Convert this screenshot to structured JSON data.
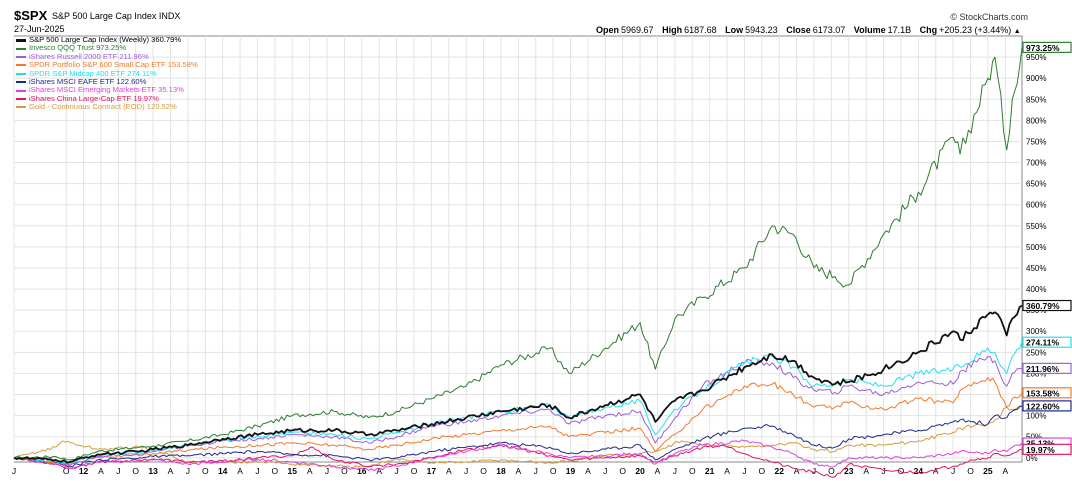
{
  "header": {
    "symbol": "$SPX",
    "name": "S&P 500 Large Cap Index INDX",
    "date": "27-Jun-2025",
    "brand": "© StockCharts.com",
    "ohlc": {
      "open_label": "Open",
      "open": "5969.67",
      "high_label": "High",
      "high": "6187.68",
      "low_label": "Low",
      "low": "5943.23",
      "close_label": "Close",
      "close": "6173.07",
      "volume_label": "Volume",
      "volume": "17.1B",
      "chg_label": "Chg",
      "chg": "+205.23 (+3.44%)",
      "chg_icon": "triangle-up-icon"
    }
  },
  "chart_data": {
    "type": "line",
    "title": "S&P 500 Large Cap Index (Weekly) 360.79%",
    "x_range": [
      "2011-01",
      "2025-06"
    ],
    "y_unit": "% change",
    "ylim": [
      -10,
      1000
    ],
    "y_ticks": [
      0,
      50,
      100,
      150,
      200,
      250,
      300,
      350,
      400,
      450,
      500,
      550,
      600,
      650,
      700,
      750,
      800,
      850,
      900,
      950
    ],
    "y_tick_labels": [
      "0%",
      "50%",
      "100%",
      "150%",
      "200%",
      "250%",
      "300%",
      "350%",
      "400%",
      "450%",
      "500%",
      "550%",
      "600%",
      "650%",
      "700%",
      "750%",
      "800%",
      "850%",
      "900%",
      "950%"
    ],
    "x_tick_labels": [
      "J",
      "O",
      "12",
      "A",
      "J",
      "O",
      "13",
      "A",
      "J",
      "O",
      "14",
      "A",
      "J",
      "O",
      "15",
      "A",
      "J",
      "O",
      "16",
      "A",
      "J",
      "O",
      "17",
      "A",
      "J",
      "O",
      "18",
      "A",
      "J",
      "O",
      "19",
      "A",
      "J",
      "O",
      "20",
      "A",
      "J",
      "O",
      "21",
      "A",
      "J",
      "O",
      "22",
      "A",
      "J",
      "O",
      "23",
      "A",
      "J",
      "O",
      "24",
      "A",
      "J",
      "O",
      "25",
      "A"
    ],
    "x_tick_years": [
      2011.0,
      2011.75,
      2012.0,
      2012.25,
      2012.5,
      2012.75,
      2013.0,
      2013.25,
      2013.5,
      2013.75,
      2014.0,
      2014.25,
      2014.5,
      2014.75,
      2015.0,
      2015.25,
      2015.5,
      2015.75,
      2016.0,
      2016.25,
      2016.5,
      2016.75,
      2017.0,
      2017.25,
      2017.5,
      2017.75,
      2018.0,
      2018.25,
      2018.5,
      2018.75,
      2019.0,
      2019.25,
      2019.5,
      2019.75,
      2020.0,
      2020.25,
      2020.5,
      2020.75,
      2021.0,
      2021.25,
      2021.5,
      2021.75,
      2022.0,
      2022.25,
      2022.5,
      2022.75,
      2023.0,
      2023.25,
      2023.5,
      2023.75,
      2024.0,
      2024.25,
      2024.5,
      2024.75,
      2025.0,
      2025.25
    ],
    "x_tick_bold": [
      false,
      false,
      true,
      false,
      false,
      false,
      true,
      false,
      false,
      false,
      true,
      false,
      false,
      false,
      true,
      false,
      false,
      false,
      true,
      false,
      false,
      false,
      true,
      false,
      false,
      false,
      true,
      false,
      false,
      false,
      true,
      false,
      false,
      false,
      true,
      false,
      false,
      false,
      true,
      false,
      false,
      false,
      true,
      false,
      false,
      false,
      true,
      false,
      false,
      false,
      true,
      false,
      false,
      false,
      true,
      false
    ],
    "grid": true,
    "legend_position": "top-left",
    "series": [
      {
        "name": "Invesco QQQ Trust 973.25%",
        "color": "#2e7d32",
        "end_label": "973.25%",
        "x": [
          2011.0,
          2011.6,
          2011.8,
          2012.2,
          2012.8,
          2013.0,
          2013.5,
          2014.0,
          2014.5,
          2015.0,
          2015.6,
          2016.1,
          2016.5,
          2017.0,
          2017.5,
          2018.0,
          2018.7,
          2018.98,
          2019.5,
          2020.0,
          2020.22,
          2020.5,
          2020.9,
          2021.5,
          2021.9,
          2022.2,
          2022.5,
          2022.8,
          2023.0,
          2023.5,
          2024.0,
          2024.5,
          2024.6,
          2025.0,
          2025.1,
          2025.27,
          2025.35,
          2025.49
        ],
        "y": [
          0,
          3,
          -5,
          15,
          25,
          28,
          40,
          55,
          75,
          100,
          110,
          95,
          110,
          140,
          170,
          220,
          260,
          200,
          260,
          320,
          210,
          330,
          380,
          450,
          550,
          530,
          450,
          430,
          410,
          530,
          630,
          760,
          720,
          900,
          950,
          730,
          850,
          973
        ]
      },
      {
        "name": "S&P 500 Large Cap Index (Weekly) 360.79%",
        "color": "#111111",
        "bold": true,
        "end_label": "360.79%",
        "x": [
          2011.0,
          2011.6,
          2011.8,
          2012.2,
          2012.8,
          2013.0,
          2013.5,
          2014.0,
          2014.5,
          2015.0,
          2015.6,
          2016.1,
          2016.5,
          2017.0,
          2017.5,
          2018.0,
          2018.7,
          2018.98,
          2019.5,
          2020.0,
          2020.22,
          2020.5,
          2020.9,
          2021.5,
          2021.9,
          2022.2,
          2022.5,
          2022.8,
          2023.0,
          2023.5,
          2024.0,
          2024.5,
          2024.6,
          2025.0,
          2025.1,
          2025.27,
          2025.35,
          2025.49
        ],
        "y": [
          0,
          -5,
          -10,
          8,
          15,
          20,
          30,
          45,
          55,
          65,
          65,
          55,
          65,
          80,
          95,
          110,
          125,
          95,
          125,
          150,
          85,
          135,
          160,
          215,
          245,
          230,
          190,
          175,
          180,
          210,
          250,
          300,
          280,
          340,
          345,
          290,
          330,
          361
        ]
      },
      {
        "name": "SPDR S&P Midcap 400 ETF 274.11%",
        "color": "#22e0f0",
        "end_label": "274.11%",
        "x": [
          2011.0,
          2011.6,
          2011.8,
          2012.2,
          2012.8,
          2013.0,
          2013.5,
          2014.0,
          2014.5,
          2015.0,
          2015.6,
          2016.1,
          2016.5,
          2017.0,
          2017.5,
          2018.0,
          2018.7,
          2018.98,
          2019.5,
          2020.0,
          2020.22,
          2020.5,
          2020.9,
          2021.5,
          2021.9,
          2022.2,
          2022.5,
          2022.8,
          2023.0,
          2023.5,
          2024.0,
          2024.5,
          2024.6,
          2025.0,
          2025.1,
          2025.27,
          2025.35,
          2025.49
        ],
        "y": [
          0,
          -8,
          -12,
          5,
          12,
          18,
          30,
          42,
          52,
          60,
          55,
          45,
          60,
          80,
          95,
          110,
          125,
          95,
          120,
          135,
          55,
          115,
          160,
          225,
          240,
          215,
          170,
          175,
          185,
          170,
          200,
          210,
          215,
          260,
          250,
          200,
          240,
          274
        ]
      },
      {
        "name": "iShares Russell 2000 ETF 211.96%",
        "color": "#9c5fd6",
        "end_label": "211.96%",
        "x": [
          2011.0,
          2011.6,
          2011.8,
          2012.2,
          2012.8,
          2013.0,
          2013.5,
          2014.0,
          2014.5,
          2015.0,
          2015.6,
          2016.1,
          2016.5,
          2017.0,
          2017.5,
          2018.0,
          2018.7,
          2018.98,
          2019.5,
          2020.0,
          2020.22,
          2020.5,
          2020.9,
          2021.5,
          2021.9,
          2022.2,
          2022.5,
          2022.8,
          2023.0,
          2023.5,
          2024.0,
          2024.5,
          2024.6,
          2025.0,
          2025.1,
          2025.27,
          2025.35,
          2025.49
        ],
        "y": [
          0,
          -10,
          -18,
          3,
          8,
          15,
          28,
          40,
          45,
          55,
          50,
          35,
          50,
          75,
          85,
          100,
          115,
          80,
          100,
          110,
          35,
          95,
          170,
          225,
          225,
          190,
          160,
          155,
          170,
          150,
          180,
          175,
          205,
          240,
          230,
          170,
          200,
          212
        ]
      },
      {
        "name": "SPDR Portfolio S&P 600 Small Cap ETF 153.58%",
        "color": "#f07a2a",
        "end_label": "153.58%",
        "x": [
          2011.0,
          2011.6,
          2011.8,
          2012.2,
          2012.8,
          2013.0,
          2013.5,
          2014.0,
          2014.5,
          2015.0,
          2015.6,
          2016.1,
          2016.5,
          2017.0,
          2017.5,
          2018.0,
          2018.7,
          2018.98,
          2019.5,
          2020.0,
          2020.22,
          2020.5,
          2020.9,
          2021.5,
          2021.9,
          2022.2,
          2022.5,
          2022.8,
          2023.0,
          2023.5,
          2024.0,
          2024.5,
          2024.6,
          2025.0,
          2025.1,
          2025.27,
          2025.35,
          2025.49
        ],
        "y": [
          0,
          -10,
          -15,
          2,
          5,
          10,
          18,
          25,
          30,
          35,
          30,
          20,
          30,
          45,
          55,
          65,
          75,
          50,
          60,
          70,
          15,
          55,
          115,
          170,
          175,
          150,
          120,
          120,
          130,
          115,
          140,
          130,
          160,
          190,
          180,
          120,
          140,
          154
        ]
      },
      {
        "name": "iShares MSCI EAFE ETF 122.60%",
        "color": "#1e2a8a",
        "end_label": "122.60%",
        "x": [
          2011.0,
          2011.6,
          2011.8,
          2012.2,
          2012.8,
          2013.0,
          2013.5,
          2014.0,
          2014.5,
          2015.0,
          2015.6,
          2016.1,
          2016.5,
          2017.0,
          2017.5,
          2018.0,
          2018.7,
          2018.98,
          2019.5,
          2020.0,
          2020.22,
          2020.5,
          2020.9,
          2021.5,
          2021.9,
          2022.2,
          2022.5,
          2022.8,
          2023.0,
          2023.5,
          2024.0,
          2024.5,
          2024.6,
          2025.0,
          2025.1,
          2025.27,
          2025.35,
          2025.49
        ],
        "y": [
          0,
          -12,
          -20,
          -5,
          0,
          3,
          5,
          10,
          15,
          8,
          5,
          -5,
          0,
          15,
          25,
          35,
          25,
          10,
          20,
          30,
          -5,
          20,
          45,
          70,
          75,
          55,
          30,
          25,
          45,
          55,
          65,
          85,
          90,
          80,
          100,
          95,
          110,
          123
        ]
      },
      {
        "name": "iShares MSCI Emerging Markets ETF 35.13%",
        "color": "#e040e0",
        "end_label": "35.13%",
        "x": [
          2011.0,
          2011.6,
          2011.8,
          2012.2,
          2012.8,
          2013.0,
          2013.5,
          2014.0,
          2014.5,
          2015.0,
          2015.6,
          2016.1,
          2016.5,
          2017.0,
          2017.5,
          2018.0,
          2018.7,
          2018.98,
          2019.5,
          2020.0,
          2020.22,
          2020.5,
          2020.9,
          2021.5,
          2021.9,
          2022.2,
          2022.5,
          2022.8,
          2023.0,
          2023.5,
          2024.0,
          2024.5,
          2024.6,
          2025.0,
          2025.1,
          2025.27,
          2025.35,
          2025.49
        ],
        "y": [
          0,
          -15,
          -25,
          -10,
          -8,
          -5,
          -15,
          -10,
          -3,
          -10,
          -20,
          -30,
          -20,
          0,
          15,
          30,
          10,
          0,
          5,
          10,
          -15,
          10,
          30,
          40,
          25,
          10,
          -15,
          -20,
          0,
          0,
          0,
          10,
          15,
          10,
          20,
          15,
          25,
          35
        ]
      },
      {
        "name": "iShares China Large-Cap ETF 19.97%",
        "color": "#d81b60",
        "end_label": "19.97%",
        "x": [
          2011.0,
          2011.6,
          2011.8,
          2012.2,
          2012.8,
          2013.0,
          2013.5,
          2014.0,
          2014.5,
          2015.0,
          2015.3,
          2015.6,
          2016.1,
          2016.5,
          2017.0,
          2017.5,
          2018.0,
          2018.7,
          2018.98,
          2019.5,
          2020.0,
          2020.22,
          2020.5,
          2020.9,
          2021.2,
          2021.5,
          2021.9,
          2022.2,
          2022.5,
          2022.8,
          2023.0,
          2023.5,
          2024.0,
          2024.5,
          2024.6,
          2024.75,
          2025.0,
          2025.1,
          2025.27,
          2025.35,
          2025.49
        ],
        "y": [
          0,
          -15,
          -25,
          -10,
          -5,
          -3,
          -10,
          -8,
          0,
          5,
          25,
          -5,
          -20,
          -15,
          0,
          20,
          30,
          5,
          -5,
          0,
          5,
          -10,
          5,
          25,
          30,
          10,
          -10,
          -25,
          -35,
          -45,
          -15,
          -30,
          -35,
          -20,
          -15,
          -5,
          0,
          10,
          5,
          10,
          20
        ]
      },
      {
        "name": "Gold - Continuous Contract (EOD) 120.52%",
        "color": "#d79a3c",
        "end_label": "",
        "x": [
          2011.0,
          2011.6,
          2011.7,
          2012.2,
          2012.8,
          2013.0,
          2013.5,
          2014.0,
          2014.5,
          2015.0,
          2015.6,
          2016.1,
          2016.5,
          2017.0,
          2017.5,
          2018.0,
          2018.7,
          2018.98,
          2019.5,
          2020.0,
          2020.22,
          2020.6,
          2020.9,
          2021.5,
          2021.9,
          2022.2,
          2022.5,
          2022.8,
          2023.0,
          2023.5,
          2024.0,
          2024.5,
          2024.6,
          2025.0,
          2025.1,
          2025.27,
          2025.35,
          2025.49
        ],
        "y": [
          0,
          25,
          40,
          20,
          25,
          20,
          -10,
          -12,
          -8,
          -15,
          -20,
          -22,
          -2,
          -12,
          -10,
          -5,
          -12,
          -8,
          5,
          10,
          15,
          40,
          30,
          25,
          30,
          35,
          20,
          15,
          30,
          30,
          40,
          60,
          70,
          80,
          90,
          120,
          115,
          121
        ]
      }
    ]
  }
}
